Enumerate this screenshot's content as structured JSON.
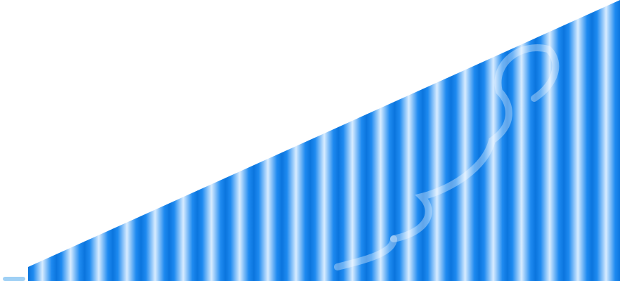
{
  "graphic": {
    "shape": "ascending-right-triangle",
    "stripe_count": 21,
    "watermark": "swirl-watermark",
    "colors": {
      "stripe_edge": "#0a74dd",
      "stripe_mid": "#1e8af0",
      "stripe_highlight": "#d8ecff",
      "corner_accent": "#9fd0f5",
      "background": "#ffffff"
    }
  }
}
